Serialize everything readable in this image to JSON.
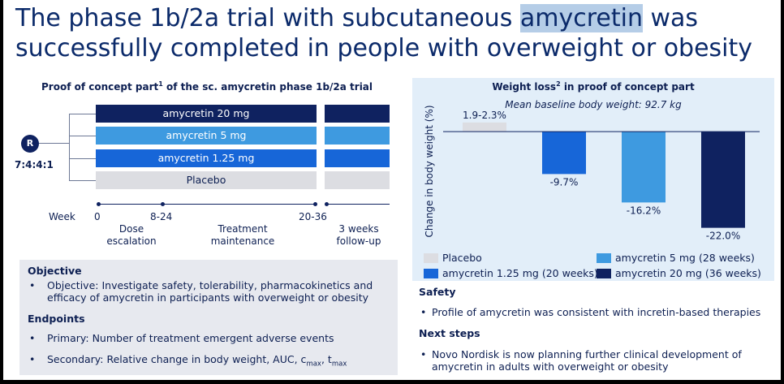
{
  "title": {
    "line1_before": "The phase 1b/2a trial with subcutaneous ",
    "line1_highlight": "amycretin",
    "line1_after": " was",
    "line2": "successfully completed in people with overweight or obesity"
  },
  "left_panel": {
    "title": "Proof of concept part",
    "title_sup": "1",
    "title_suffix": " of the sc. amycretin phase 1b/2a trial",
    "randomization_badge": "R",
    "ratio": "7:4:4:1",
    "arms": [
      {
        "label": "amycretin 20 mg",
        "color": "#0f2260"
      },
      {
        "label": "amycretin 5 mg",
        "color": "#3e9ae0"
      },
      {
        "label": "amycretin 1.25 mg",
        "color": "#1766d8"
      },
      {
        "label": "Placebo",
        "color": "#dcdde2"
      }
    ],
    "timeline": {
      "week_label": "Week",
      "ticks": [
        "0",
        "8-24",
        "20-36"
      ],
      "phases": [
        "Dose\nescalation",
        "Treatment\nmaintenance",
        "3 weeks\nfollow-up"
      ]
    }
  },
  "objective_box": {
    "objective_heading": "Objective",
    "objective_text": "Objective: Investigate safety, tolerability, pharmacokinetics and efficacy of amycretin in participants with overweight or obesity",
    "endpoints_heading": "Endpoints",
    "primary": "Primary: Number of treatment emergent adverse events",
    "secondary_prefix": "Secondary: Relative change in body weight, AUC, c",
    "secondary_sub1": "max",
    "secondary_mid": ", t",
    "secondary_sub2": "max"
  },
  "chart_data": {
    "type": "bar",
    "title": "Weight loss",
    "title_sup": "2",
    "title_suffix": " in proof of concept part",
    "subtitle": "Mean baseline body weight: 92.7 kg",
    "ylabel": "Change in body weight (%)",
    "categories": [
      "Placebo",
      "amycretin 1.25 mg (20 weeks)",
      "amycretin 5 mg (28 weeks)",
      "amycretin 20 mg (36 weeks)"
    ],
    "values": [
      2.1,
      -9.7,
      -16.2,
      -22.0
    ],
    "data_labels": [
      "1.9-2.3%",
      "-9.7%",
      "-16.2%",
      "-22.0%"
    ],
    "colors": [
      "#dcdde2",
      "#1766d8",
      "#3e9ae0",
      "#0f2260"
    ],
    "ylim": [
      -23,
      3
    ],
    "grid": false,
    "legend_position": "bottom"
  },
  "right_panel": {
    "safety_heading": "Safety",
    "safety_text": "Profile of amycretin was consistent with incretin-based therapies",
    "next_heading": "Next steps",
    "next_text": "Novo Nordisk is now planning further clinical development of amycretin in adults with overweight or obesity"
  },
  "bullet": "•"
}
